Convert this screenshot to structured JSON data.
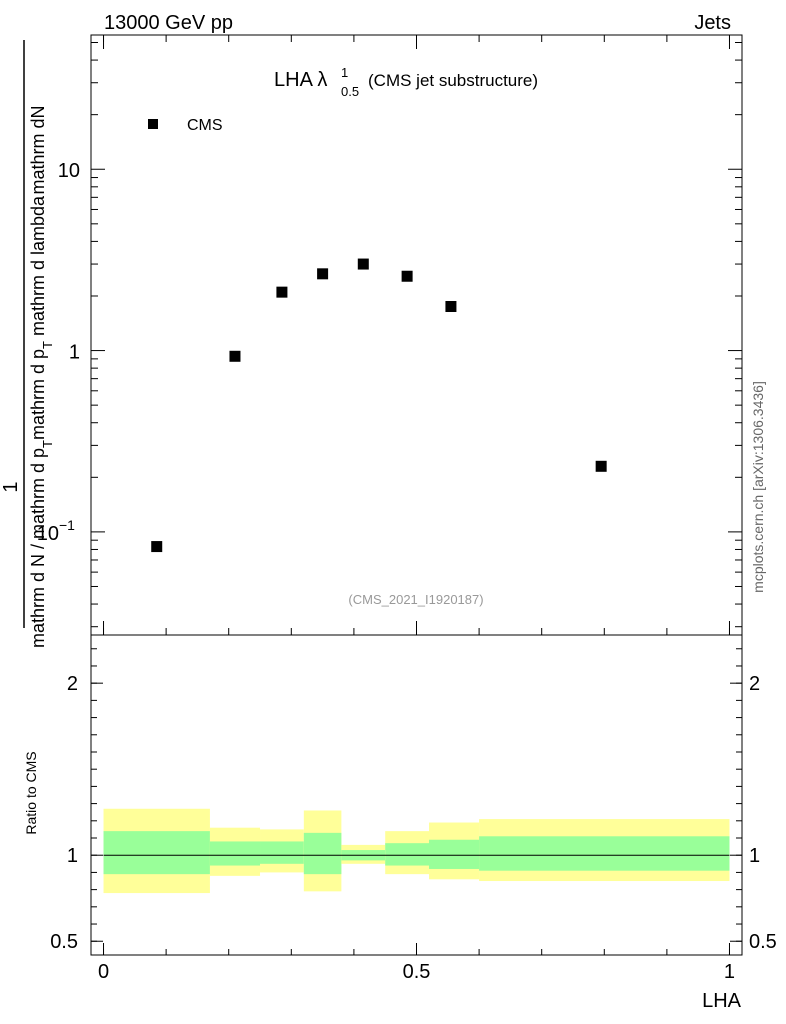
{
  "header": {
    "left_label": "13000 GeV pp",
    "right_label": "Jets"
  },
  "plot_title": {
    "main": "LHA λ",
    "superscript": "1",
    "subscript": "0.5",
    "suffix": "(CMS jet substructure)"
  },
  "watermark": "(CMS_2021_I1920187)",
  "side_label": "mcplots.cern.ch [arXiv:1306.3436]",
  "chart_data": [
    {
      "type": "scatter",
      "panel": "main",
      "ylabel_numerator": "mathrm dN",
      "ylabel_numerator_prefix": "1",
      "ylabel_parts": [
        "mathrm d N / mathrm d p",
        "T",
        "mathrm d p",
        "T",
        " mathrm d lambda"
      ],
      "ylabel_full": "mathrm dN / mathrm d p_T mathrm d lambda; 1 / mathrm d N / mathrm d p_T mathrm d p_T",
      "yscale": "log",
      "ylim": [
        0.027,
        55
      ],
      "xlim": [
        -0.02,
        1.02
      ],
      "y_ticks": [
        {
          "value": 0.1,
          "label": "10",
          "exp": "−1"
        },
        {
          "value": 1,
          "label": "1",
          "exp": ""
        },
        {
          "value": 10,
          "label": "10",
          "exp": ""
        }
      ],
      "legend": {
        "entry": "CMS",
        "placement": "top-left"
      },
      "series": [
        {
          "name": "CMS",
          "color": "#000000",
          "marker": "square",
          "x": [
            0.085,
            0.21,
            0.285,
            0.35,
            0.415,
            0.485,
            0.555,
            0.795
          ],
          "y": [
            0.083,
            0.93,
            2.1,
            2.65,
            3.0,
            2.57,
            1.75,
            0.23
          ]
        }
      ]
    },
    {
      "type": "area",
      "panel": "ratio",
      "ylabel": "Ratio to CMS",
      "xlabel": "LHA",
      "ylim": [
        0.42,
        2.28
      ],
      "xlim": [
        -0.02,
        1.02
      ],
      "y_ticks": [
        {
          "value": 0.5,
          "label": "0.5"
        },
        {
          "value": 1,
          "label": "1"
        },
        {
          "value": 2,
          "label": "2"
        }
      ],
      "x_ticks": [
        {
          "value": 0,
          "label": "0"
        },
        {
          "value": 0.5,
          "label": "0.5"
        },
        {
          "value": 1,
          "label": "1"
        }
      ],
      "reference_line": 1,
      "bins": [
        0,
        0.17,
        0.25,
        0.32,
        0.38,
        0.45,
        0.52,
        0.6,
        1.0
      ],
      "band_outer": {
        "color": "#ffff99",
        "lo": [
          0.78,
          0.88,
          0.9,
          0.79,
          0.95,
          0.89,
          0.86,
          0.85
        ],
        "hi": [
          1.27,
          1.16,
          1.15,
          1.26,
          1.06,
          1.14,
          1.19,
          1.21
        ]
      },
      "band_inner": {
        "color": "#99ff99",
        "lo": [
          0.89,
          0.94,
          0.95,
          0.89,
          0.97,
          0.94,
          0.92,
          0.91
        ],
        "hi": [
          1.14,
          1.08,
          1.08,
          1.13,
          1.03,
          1.07,
          1.09,
          1.11
        ]
      }
    }
  ]
}
